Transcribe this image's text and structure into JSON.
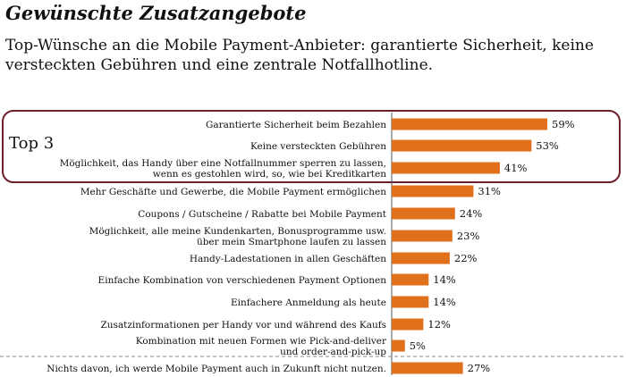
{
  "header": {
    "title": "Gewünschte Zusatzangebote",
    "subtitle": "Top-Wünsche an die Mobile Payment-Anbieter: garantierte Sicherheit, keine versteckten Gebühren und eine zentrale Notfallhotline."
  },
  "highlight": {
    "label": "Top 3",
    "color": "#6b1f2a"
  },
  "colors": {
    "bar": "#e0701c",
    "axis": "#555555"
  },
  "chart_data": {
    "type": "bar",
    "orientation": "horizontal",
    "value_unit": "%",
    "categories": [
      "Garantierte Sicherheit beim Bezahlen",
      "Keine versteckten Gebühren",
      "Möglichkeit, das Handy über eine Notfallnummer sperren zu lassen,\nwenn es gestohlen wird, so, wie bei Kreditkarten",
      "Mehr Geschäfte und Gewerbe, die Mobile Payment ermöglichen",
      "Coupons / Gutscheine / Rabatte bei Mobile Payment",
      "Möglichkeit, alle meine Kundenkarten, Bonusprogramme usw.\nüber mein Smartphone laufen zu lassen",
      "Handy-Ladestationen in allen Geschäften",
      "Einfache Kombination von verschiedenen Payment Optionen",
      "Einfachere Anmeldung als heute",
      "Zusatzinformationen per Handy vor und während des Kaufs",
      "Kombination mit neuen Formen wie Pick-and-deliver\nund order-and-pick-up",
      "Nichts davon, ich werde Mobile Payment auch in Zukunft nicht nutzen."
    ],
    "values": [
      59,
      53,
      41,
      31,
      24,
      23,
      22,
      14,
      14,
      12,
      5,
      27
    ],
    "value_labels": [
      "59%",
      "53%",
      "41%",
      "31%",
      "24%",
      "23%",
      "22%",
      "14%",
      "14%",
      "12%",
      "5%",
      "27%"
    ],
    "highlighted_top": 3,
    "separator_before_last": true
  }
}
